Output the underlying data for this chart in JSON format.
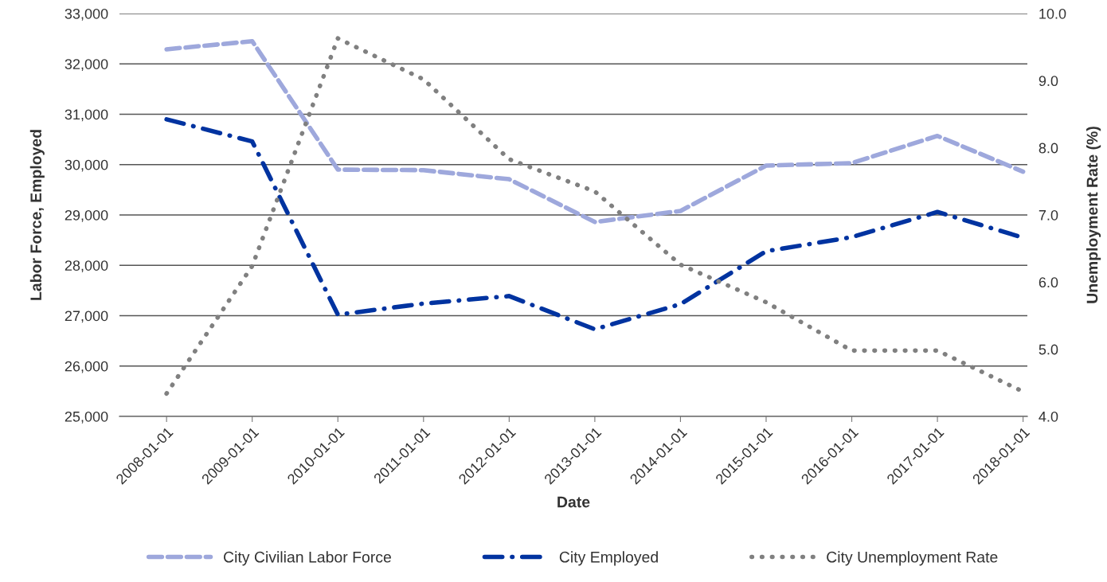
{
  "chart_data": {
    "type": "line",
    "xlabel": "Date",
    "ylabel": "Labor Force, Employed",
    "y2label": "Unemployment Rate (%)",
    "categories": [
      "2008-01-01",
      "2009-01-01",
      "2010-01-01",
      "2011-01-01",
      "2012-01-01",
      "2013-01-01",
      "2014-01-01",
      "2015-01-01",
      "2016-01-01",
      "2017-01-01",
      "2018-01-01"
    ],
    "series": [
      {
        "name": "City Civilian Labor Force",
        "color": "#9ea8dc",
        "line_style": "dashed",
        "values": [
          32290,
          32450,
          29900,
          29890,
          29710,
          28860,
          29080,
          29980,
          30030,
          30570,
          29860
        ]
      },
      {
        "name": "City Employed",
        "color": "#0033a0",
        "line_style": "dashdot",
        "values": [
          30900,
          30460,
          27020,
          27240,
          27390,
          26730,
          27230,
          28280,
          28560,
          29060,
          28550
        ]
      },
      {
        "name": "City Unemployment Rate",
        "color": "#808080",
        "line_style": "dotted",
        "axis": "y2",
        "values": [
          4.34,
          6.24,
          9.63,
          9.02,
          7.83,
          7.35,
          6.26,
          5.7,
          4.98,
          4.98,
          4.37
        ]
      }
    ],
    "ylim": [
      25000,
      33000
    ],
    "yticks": [
      {
        "value": 25000,
        "label": "25,000"
      },
      {
        "value": 26000,
        "label": "26,000"
      },
      {
        "value": 27000,
        "label": "27,000"
      },
      {
        "value": 28000,
        "label": "28,000"
      },
      {
        "value": 29000,
        "label": "29,000"
      },
      {
        "value": 30000,
        "label": "30,000"
      },
      {
        "value": 31000,
        "label": "31,000"
      },
      {
        "value": 32000,
        "label": "32,000"
      },
      {
        "value": 33000,
        "label": "33,000"
      }
    ],
    "y2lim": [
      4,
      10
    ],
    "y2ticks": [
      {
        "value": 4,
        "label": "4.0"
      },
      {
        "value": 5,
        "label": "5.0"
      },
      {
        "value": 6,
        "label": "6.0"
      },
      {
        "value": 7,
        "label": "7.0"
      },
      {
        "value": 8,
        "label": "8.0"
      },
      {
        "value": 9,
        "label": "9.0"
      },
      {
        "value": 10,
        "label": "10.0"
      }
    ],
    "grid": "y",
    "legend": "bottom",
    "marker": "none"
  }
}
